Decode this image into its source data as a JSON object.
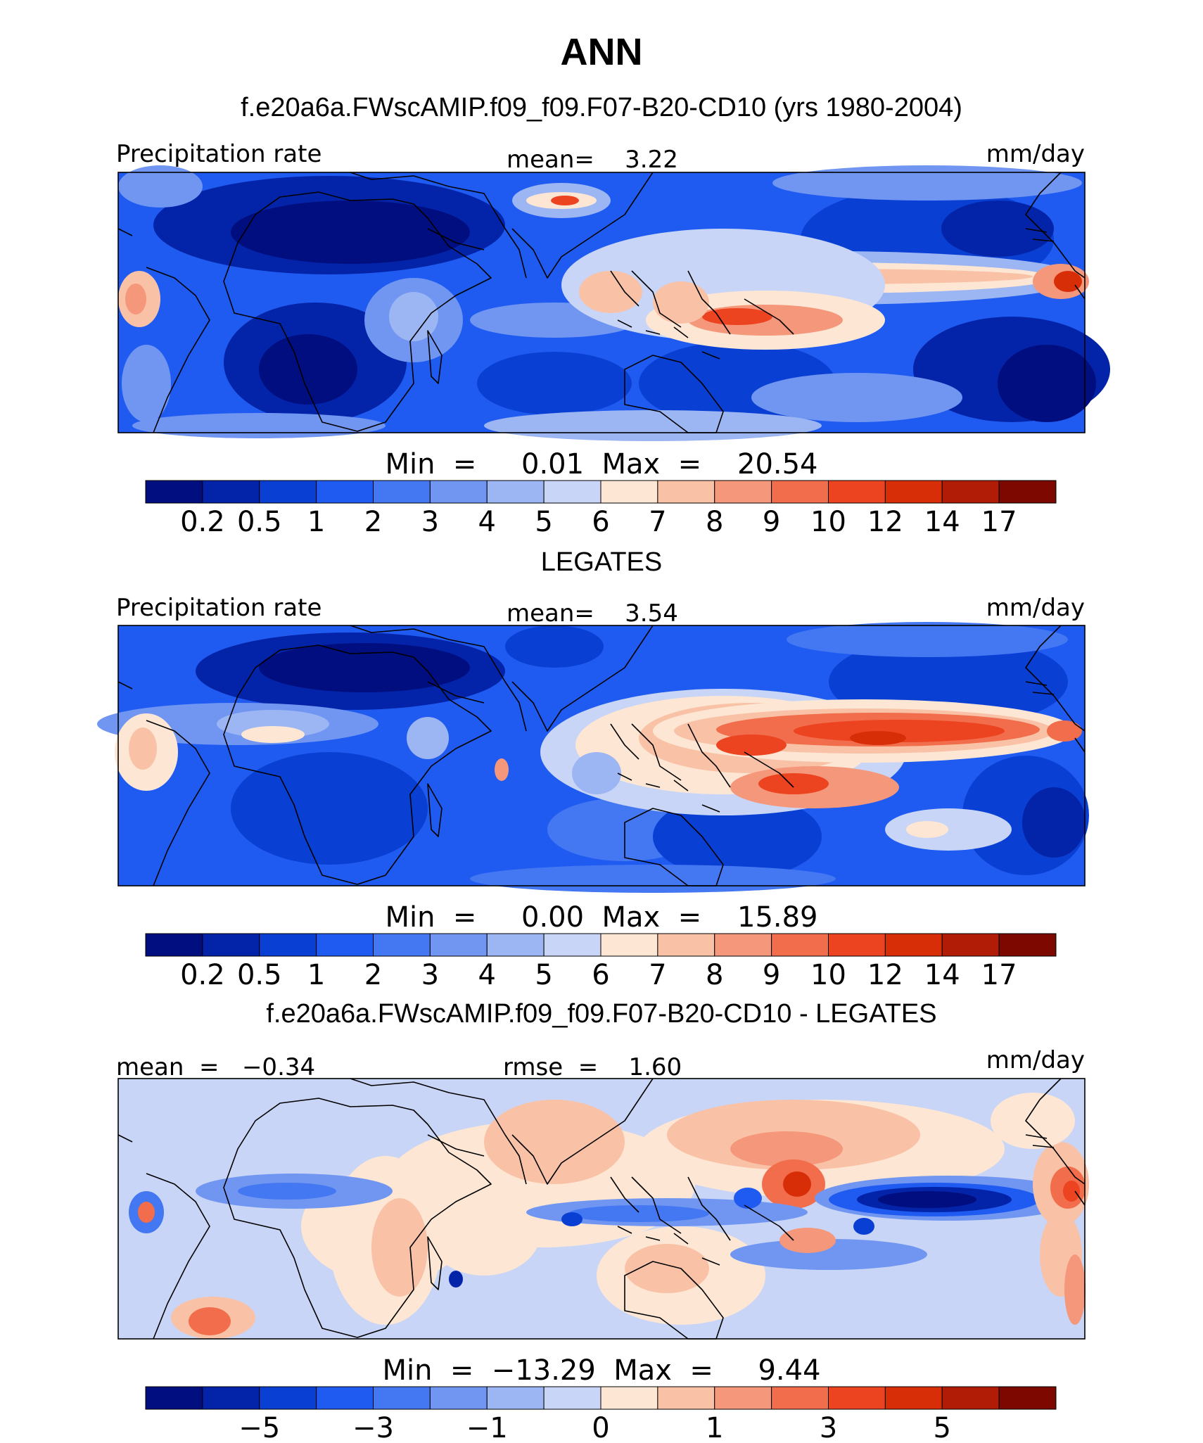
{
  "title": "ANN",
  "chart_data": [
    {
      "type": "heatmap",
      "header": "f.e20a6a.FWscAMIP.f09_f09.F07-B20-CD10 (yrs 1980-2004)",
      "left_label": "Precipitation rate",
      "center_label": "mean=    3.22",
      "right_label": "mm/day",
      "stats": "Min  =     0.01  Max  =    20.54",
      "colorbar": {
        "colors": [
          "#000e7f",
          "#0324a8",
          "#0a3fd3",
          "#1f5bf0",
          "#4477f2",
          "#7096f2",
          "#9cb5f3",
          "#c8d5f6",
          "#fde7d4",
          "#f9c2a7",
          "#f5977a",
          "#f16d4b",
          "#ec4320",
          "#d82e08",
          "#b01c05",
          "#7d0800"
        ],
        "tick_labels": [
          "0.2",
          "0.5",
          "1",
          "2",
          "3",
          "4",
          "5",
          "6",
          "7",
          "8",
          "9",
          "10",
          "12",
          "14",
          "17"
        ]
      }
    },
    {
      "type": "heatmap",
      "header": "LEGATES",
      "left_label": "Precipitation rate",
      "center_label": "mean=    3.54",
      "right_label": "mm/day",
      "stats": "Min  =     0.00  Max  =    15.89",
      "colorbar": {
        "colors": [
          "#000e7f",
          "#0324a8",
          "#0a3fd3",
          "#1f5bf0",
          "#4477f2",
          "#7096f2",
          "#9cb5f3",
          "#c8d5f6",
          "#fde7d4",
          "#f9c2a7",
          "#f5977a",
          "#f16d4b",
          "#ec4320",
          "#d82e08",
          "#b01c05",
          "#7d0800"
        ],
        "tick_labels": [
          "0.2",
          "0.5",
          "1",
          "2",
          "3",
          "4",
          "5",
          "6",
          "7",
          "8",
          "9",
          "10",
          "12",
          "14",
          "17"
        ]
      }
    },
    {
      "type": "heatmap",
      "header": "f.e20a6a.FWscAMIP.f09_f09.F07-B20-CD10 - LEGATES",
      "left_label": "mean  =   −0.34",
      "center_label": "rmse  =    1.60",
      "right_label": "mm/day",
      "stats": "Min  =  −13.29  Max  =     9.44",
      "colorbar": {
        "colors": [
          "#000e7f",
          "#0324a8",
          "#0a3fd3",
          "#1f5bf0",
          "#4477f2",
          "#7096f2",
          "#9cb5f3",
          "#c8d5f6",
          "#fde7d4",
          "#f9c2a7",
          "#f5977a",
          "#f16d4b",
          "#ec4320",
          "#d82e08",
          "#b01c05",
          "#7d0800"
        ],
        "tick_labels": [
          "−5",
          "",
          "−3",
          "",
          "−1",
          "",
          "0",
          "",
          "1",
          "",
          "3",
          "",
          "5"
        ],
        "tick_indices": [
          2,
          3,
          4,
          5,
          6,
          7,
          8,
          9,
          10,
          11,
          12,
          13,
          14
        ]
      }
    }
  ]
}
